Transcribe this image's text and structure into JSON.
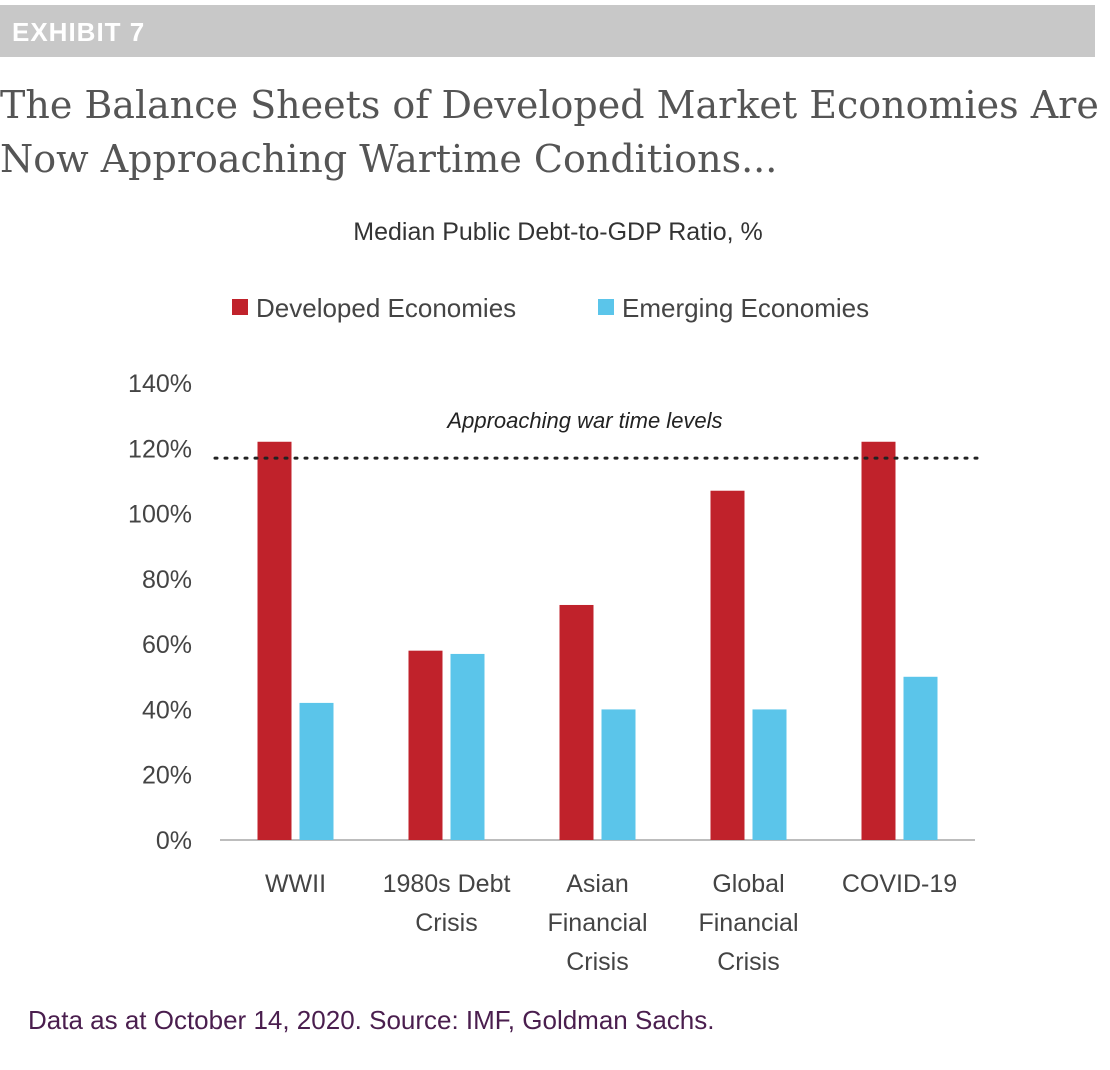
{
  "header": {
    "exhibit": "EXHIBIT 7"
  },
  "title": "The Balance Sheets of Developed Market Economies Are Now Approaching Wartime Conditions...",
  "source": "Data as at October 14, 2020. Source: IMF, Goldman Sachs.",
  "colors": {
    "developed": "#c0222b",
    "emerging": "#5bc5ea",
    "header_bg": "#c8c8c8",
    "source_text": "#4a1e4e"
  },
  "chart_data": {
    "type": "bar",
    "title": "Median Public Debt-to-GDP Ratio, %",
    "categories": [
      [
        "WWII"
      ],
      [
        "1980s Debt",
        "Crisis"
      ],
      [
        "Asian",
        "Financial",
        "Crisis"
      ],
      [
        "Global",
        "Financial",
        "Crisis"
      ],
      [
        "COVID-19"
      ]
    ],
    "series": [
      {
        "name": "Developed Economies",
        "values": [
          122,
          58,
          72,
          107,
          122
        ]
      },
      {
        "name": "Emerging Economies",
        "values": [
          42,
          57,
          40,
          40,
          50
        ]
      }
    ],
    "ylim": [
      0,
      140
    ],
    "yticks": [
      "0%",
      "20%",
      "40%",
      "60%",
      "80%",
      "100%",
      "120%",
      "140%"
    ],
    "reference_line": {
      "value": 117,
      "label": "Approaching war time levels",
      "style": "dotted"
    },
    "legend_position": "top",
    "grid": false
  }
}
